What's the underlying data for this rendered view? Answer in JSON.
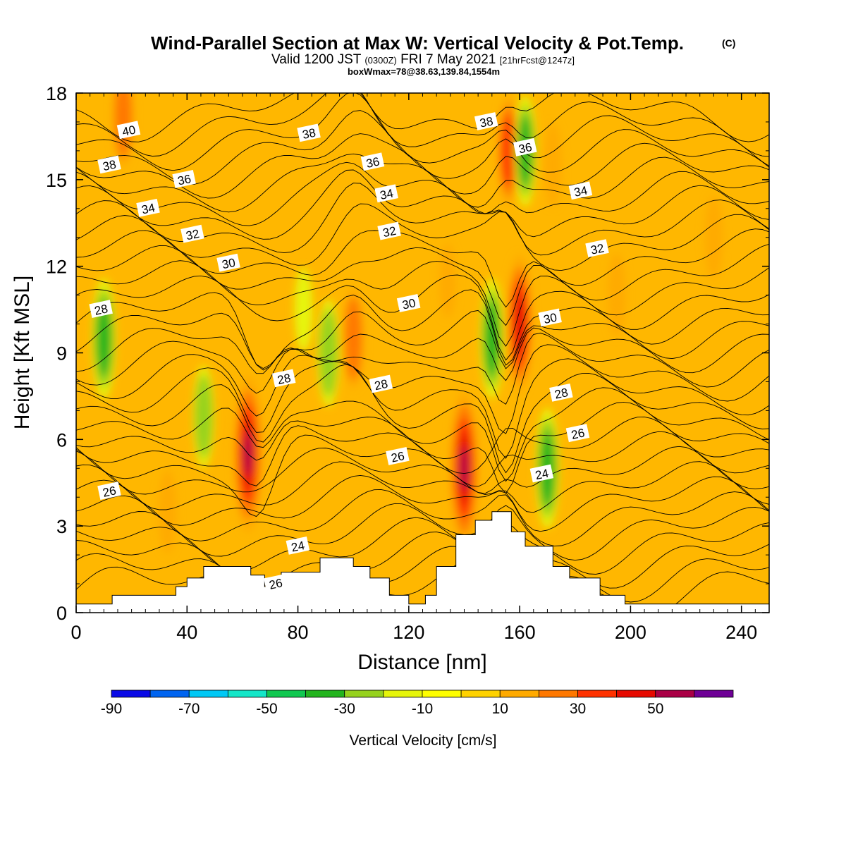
{
  "chart_data": {
    "type": "heatmap",
    "title": "Wind-Parallel Section at Max W: Vertical Velocity & Pot.Temp.",
    "title_suffix": "(C)",
    "subtitle": {
      "prefix": "Valid 1200 JST",
      "zulu": "(0300Z)",
      "date": "FRI 7 May 2021",
      "forecast": "[21hrFcst@1247z]"
    },
    "subtitle2": "boxWmax=78@38.63,139.84,1554m",
    "xlabel": "Distance [nm]",
    "ylabel": "Height [Kft MSL]",
    "xlim": [
      0,
      250
    ],
    "ylim": [
      0,
      18
    ],
    "x_ticks": [
      "0",
      "40",
      "80",
      "120",
      "160",
      "200",
      "240"
    ],
    "y_ticks": [
      "0",
      "3",
      "6",
      "9",
      "12",
      "15",
      "18"
    ],
    "colorbar": {
      "label": "Vertical Velocity [cm/s]",
      "tick_labels": [
        "-90",
        "-70",
        "-50",
        "-30",
        "-10",
        "10",
        "30",
        "50"
      ],
      "levels": [
        -90,
        -80,
        -70,
        -60,
        -50,
        -40,
        -30,
        -20,
        -10,
        0,
        10,
        20,
        30,
        40,
        50,
        60
      ],
      "colors": [
        "#0a0ae6",
        "#0064f0",
        "#00c8f5",
        "#14e6c8",
        "#10c850",
        "#23b41e",
        "#96d21e",
        "#e6f50a",
        "#ffff00",
        "#ffd200",
        "#ffaa00",
        "#ff7800",
        "#ff3200",
        "#e60a00",
        "#aa0046",
        "#6e0096"
      ],
      "fill_levels": [
        {
          "name": "background",
          "value": 5,
          "color": "#ffaa00"
        },
        {
          "name": "weak-ascent-tint",
          "value": 2,
          "color": "#ffd200"
        }
      ]
    },
    "contour_labels": [
      {
        "text": "40",
        "x": 19,
        "y": 16.7
      },
      {
        "text": "38",
        "x": 12,
        "y": 15.5
      },
      {
        "text": "38",
        "x": 84,
        "y": 16.6
      },
      {
        "text": "38",
        "x": 148,
        "y": 17.0
      },
      {
        "text": "36",
        "x": 39,
        "y": 15.0
      },
      {
        "text": "36",
        "x": 107,
        "y": 15.6
      },
      {
        "text": "36",
        "x": 162,
        "y": 16.1
      },
      {
        "text": "34",
        "x": 26,
        "y": 14.0
      },
      {
        "text": "34",
        "x": 112,
        "y": 14.5
      },
      {
        "text": "34",
        "x": 182,
        "y": 14.6
      },
      {
        "text": "32",
        "x": 42,
        "y": 13.1
      },
      {
        "text": "32",
        "x": 113,
        "y": 13.2
      },
      {
        "text": "32",
        "x": 188,
        "y": 12.6
      },
      {
        "text": "30",
        "x": 55,
        "y": 12.1
      },
      {
        "text": "30",
        "x": 120,
        "y": 10.7
      },
      {
        "text": "30",
        "x": 171,
        "y": 10.2
      },
      {
        "text": "28",
        "x": 9,
        "y": 10.5
      },
      {
        "text": "28",
        "x": 75,
        "y": 8.1
      },
      {
        "text": "28",
        "x": 110,
        "y": 7.9
      },
      {
        "text": "28",
        "x": 175,
        "y": 7.6
      },
      {
        "text": "26",
        "x": 12,
        "y": 4.2
      },
      {
        "text": "26",
        "x": 116,
        "y": 5.4
      },
      {
        "text": "26",
        "x": 181,
        "y": 6.2
      },
      {
        "text": "26",
        "x": 72,
        "y": 1.0
      },
      {
        "text": "24",
        "x": 80,
        "y": 2.3
      },
      {
        "text": "24",
        "x": 168,
        "y": 4.8
      }
    ],
    "cells": [
      {
        "x": 17,
        "y": 17.2,
        "value": 25
      },
      {
        "x": 10,
        "y": 9.5,
        "value": -35
      },
      {
        "x": 62,
        "y": 5.5,
        "value": 55
      },
      {
        "x": 33,
        "y": 3.5,
        "value": 15
      },
      {
        "x": 46,
        "y": 6.8,
        "value": -25
      },
      {
        "x": 91,
        "y": 9.0,
        "value": -28
      },
      {
        "x": 100,
        "y": 9.5,
        "value": 25
      },
      {
        "x": 140,
        "y": 5.0,
        "value": 55
      },
      {
        "x": 150,
        "y": 9.5,
        "value": -35
      },
      {
        "x": 160,
        "y": 10.0,
        "value": 45
      },
      {
        "x": 156,
        "y": 16.0,
        "value": 30
      },
      {
        "x": 162,
        "y": 16.0,
        "value": -30
      },
      {
        "x": 170,
        "y": 5.0,
        "value": -35
      },
      {
        "x": 172,
        "y": 15.5,
        "value": 15
      },
      {
        "x": 195,
        "y": 11.0,
        "value": 15
      },
      {
        "x": 230,
        "y": 13.0,
        "value": 15
      },
      {
        "x": 134,
        "y": 11.5,
        "value": 10
      },
      {
        "x": 82,
        "y": 10.5,
        "value": -15
      }
    ],
    "terrain_kft": [
      [
        0,
        0.3
      ],
      [
        13,
        0.6
      ],
      [
        36,
        0.9
      ],
      [
        40,
        1.2
      ],
      [
        46,
        1.6
      ],
      [
        63,
        1.3
      ],
      [
        68,
        0.9
      ],
      [
        74,
        1.4
      ],
      [
        88,
        1.9
      ],
      [
        100,
        1.6
      ],
      [
        106,
        1.2
      ],
      [
        113,
        0.6
      ],
      [
        120,
        0.3
      ],
      [
        126,
        0.6
      ],
      [
        130,
        1.6
      ],
      [
        137,
        2.7
      ],
      [
        144,
        3.2
      ],
      [
        150,
        3.5
      ],
      [
        157,
        2.8
      ],
      [
        162,
        2.3
      ],
      [
        172,
        1.6
      ],
      [
        178,
        1.2
      ],
      [
        189,
        0.6
      ],
      [
        198,
        0.3
      ],
      [
        200,
        0.3
      ],
      [
        250,
        0.3
      ]
    ]
  }
}
